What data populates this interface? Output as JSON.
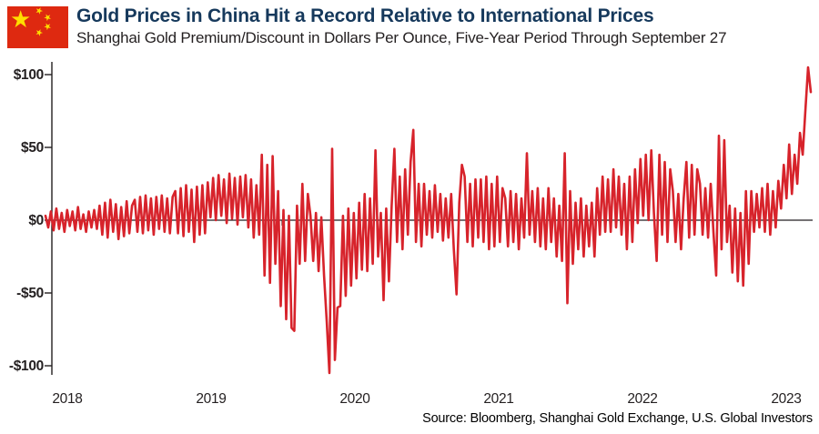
{
  "header": {
    "title": "Gold Prices in China Hit a Record Relative to International Prices",
    "subtitle": "Shanghai Gold Premium/Discount in Dollars Per Ounce, Five-Year Period Through September 27",
    "title_color": "#16395C",
    "subtitle_color": "#231F20",
    "flag": {
      "name": "china-flag",
      "red": "#DE2910",
      "yellow": "#FFDE00",
      "star_glyph": "★"
    }
  },
  "source_note": "Source: Bloomberg, Shanghai Gold Exchange, U.S. Global Investors",
  "chart_data": {
    "type": "line",
    "title": "Gold Prices in China Hit a Record Relative to International Prices",
    "subtitle": "Shanghai Gold Premium/Discount in Dollars Per Ounce, Five-Year Period Through September 27",
    "series_name": "Shanghai gold premium/discount vs. international price ($/oz)",
    "line_color": "#D7232B",
    "axis_color": "#231F20",
    "x_start_year": 2018.35,
    "x_end_year": 2023.74,
    "x_tick_labels": [
      "2018",
      "2019",
      "2020",
      "2021",
      "2022",
      "2023"
    ],
    "y_ticks": [
      100,
      50,
      0,
      -50,
      -100
    ],
    "y_tick_labels": [
      "$100",
      "$50",
      "$0",
      "-$50",
      "-$100"
    ],
    "ylim": [
      -110,
      110
    ],
    "grid": "off",
    "legend": "none",
    "notable_points": {
      "deepest_discount": -105,
      "deepest_discount_when": "late 2019 / early 2020 region of plot",
      "record_premium": 105,
      "record_premium_when": "September 2023 (end of series)"
    },
    "values": [
      3,
      -5,
      6,
      -7,
      8,
      -6,
      5,
      -8,
      7,
      -4,
      6,
      -7,
      9,
      -6,
      4,
      -8,
      6,
      -5,
      7,
      -6,
      10,
      -10,
      12,
      -12,
      14,
      -8,
      11,
      -13,
      9,
      -11,
      13,
      -9,
      10,
      14,
      -8,
      16,
      -9,
      17,
      -7,
      15,
      -10,
      16,
      -6,
      17,
      -8,
      15,
      -9,
      16,
      20,
      -9,
      22,
      -11,
      24,
      -8,
      21,
      -15,
      23,
      -10,
      24,
      -9,
      26,
      2,
      29,
      0,
      31,
      3,
      28,
      -2,
      32,
      1,
      29,
      -3,
      30,
      2,
      31,
      -5,
      28,
      -12,
      24,
      -10,
      45,
      -38,
      38,
      -43,
      44,
      -30,
      20,
      -59,
      7,
      -68,
      3,
      -74,
      -76,
      10,
      -30,
      25,
      -28,
      18,
      3,
      -28,
      5,
      -35,
      2,
      -38,
      -70,
      -105,
      49,
      -96,
      -60,
      -59,
      3,
      -52,
      8,
      -45,
      5,
      -40,
      12,
      -34,
      18,
      -35,
      15,
      -30,
      48,
      -25,
      5,
      -55,
      8,
      -42,
      10,
      49,
      -15,
      30,
      -20,
      35,
      -10,
      40,
      62,
      -15,
      25,
      -18,
      25,
      -10,
      20,
      -12,
      24,
      -8,
      18,
      -14,
      15,
      -12,
      18,
      -20,
      -51,
      12,
      38,
      30,
      -15,
      25,
      -18,
      28,
      -12,
      28,
      -15,
      30,
      -20,
      25,
      -18,
      30,
      -15,
      22,
      15,
      -18,
      20,
      -15,
      18,
      -20,
      15,
      -12,
      46,
      -10,
      20,
      -15,
      22,
      -18,
      15,
      -20,
      22,
      -15,
      15,
      -25,
      10,
      -28,
      46,
      -57,
      20,
      -30,
      12,
      -20,
      15,
      -25,
      10,
      -18,
      12,
      -25,
      22,
      -10,
      30,
      -8,
      28,
      -8,
      35,
      -5,
      30,
      -10,
      25,
      -20,
      30,
      -15,
      35,
      -2,
      42,
      3,
      45,
      0,
      48,
      5,
      -28,
      45,
      -10,
      40,
      -15,
      35,
      20,
      -15,
      18,
      -20,
      15,
      40,
      -12,
      38,
      -10,
      35,
      25,
      -10,
      22,
      -12,
      25,
      -8,
      -38,
      58,
      -20,
      55,
      -15,
      10,
      -36,
      8,
      -42,
      5,
      -45,
      20,
      -30,
      20,
      -8,
      18,
      -5,
      22,
      -8,
      25,
      -10,
      20,
      -5,
      27,
      8,
      38,
      15,
      52,
      18,
      45,
      25,
      60,
      45,
      76,
      105,
      88
    ]
  }
}
